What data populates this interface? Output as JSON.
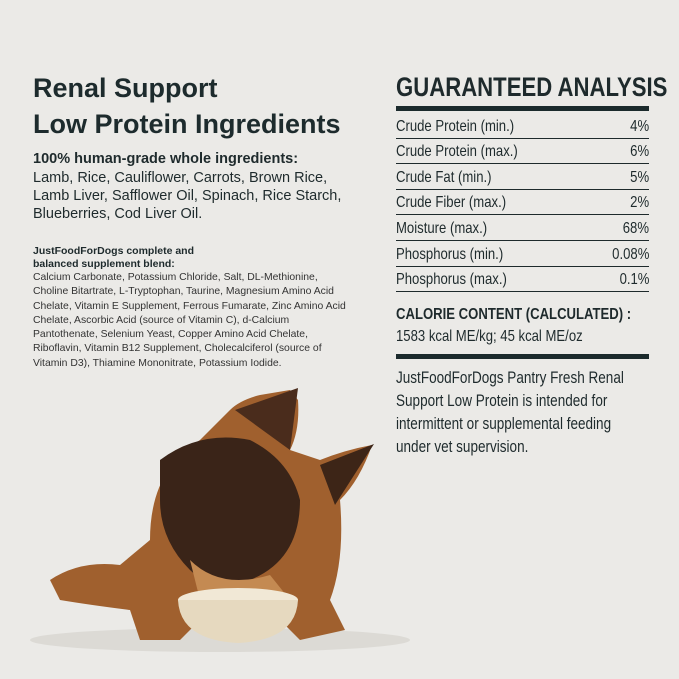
{
  "ingredients": {
    "title_line1": "Renal Support",
    "title_line2": "Low Protein Ingredients",
    "heading": "100% human-grade whole ingredients:",
    "list": "Lamb, Rice, Cauliflower, Carrots, Brown Rice, Lamb Liver, Safflower Oil, Spinach, Rice Starch, Blueberries, Cod Liver Oil.",
    "supplement_heading": "JustFoodForDogs complete and balanced supplement blend:",
    "supplement_list": "Calcium Carbonate, Potassium Chloride, Salt, DL-Methionine, Choline Bitartrate, L-Tryptophan, Taurine, Magnesium Amino Acid Chelate, Vitamin E Supplement, Ferrous Fumarate, Zinc Amino Acid Chelate, Ascorbic Acid (source of Vitamin C), d-Calcium Pantothenate, Selenium Yeast, Copper Amino Acid Chelate, Riboflavin, Vitamin B12 Supplement, Cholecalciferol (source of Vitamin D3), Thiamine Mononitrate, Potassium Iodide."
  },
  "analysis": {
    "title": "GUARANTEED ANALYSIS",
    "rows": [
      {
        "label": "Crude Protein (min.)",
        "value": "4%"
      },
      {
        "label": "Crude Protein (max.)",
        "value": "6%"
      },
      {
        "label": "Crude Fat (min.)",
        "value": "5%"
      },
      {
        "label": "Crude Fiber (max.)",
        "value": "2%"
      },
      {
        "label": "Moisture (max.)",
        "value": "68%"
      },
      {
        "label": "Phosphorus (min.)",
        "value": "0.08%"
      },
      {
        "label": "Phosphorus (max.)",
        "value": "0.1%"
      }
    ],
    "calorie_heading": "CALORIE CONTENT (CALCULATED) :",
    "calorie_value": "1583 kcal ME/kg; 45 kcal ME/oz",
    "note": "JustFoodForDogs Pantry Fresh Renal Support Low Protein is intended for intermittent or supplemental feeding under vet supervision."
  },
  "colors": {
    "text": "#1e2a2c",
    "background": "#ebeae7",
    "dog_brown": "#a0602e",
    "bowl": "#e6d9bf"
  }
}
